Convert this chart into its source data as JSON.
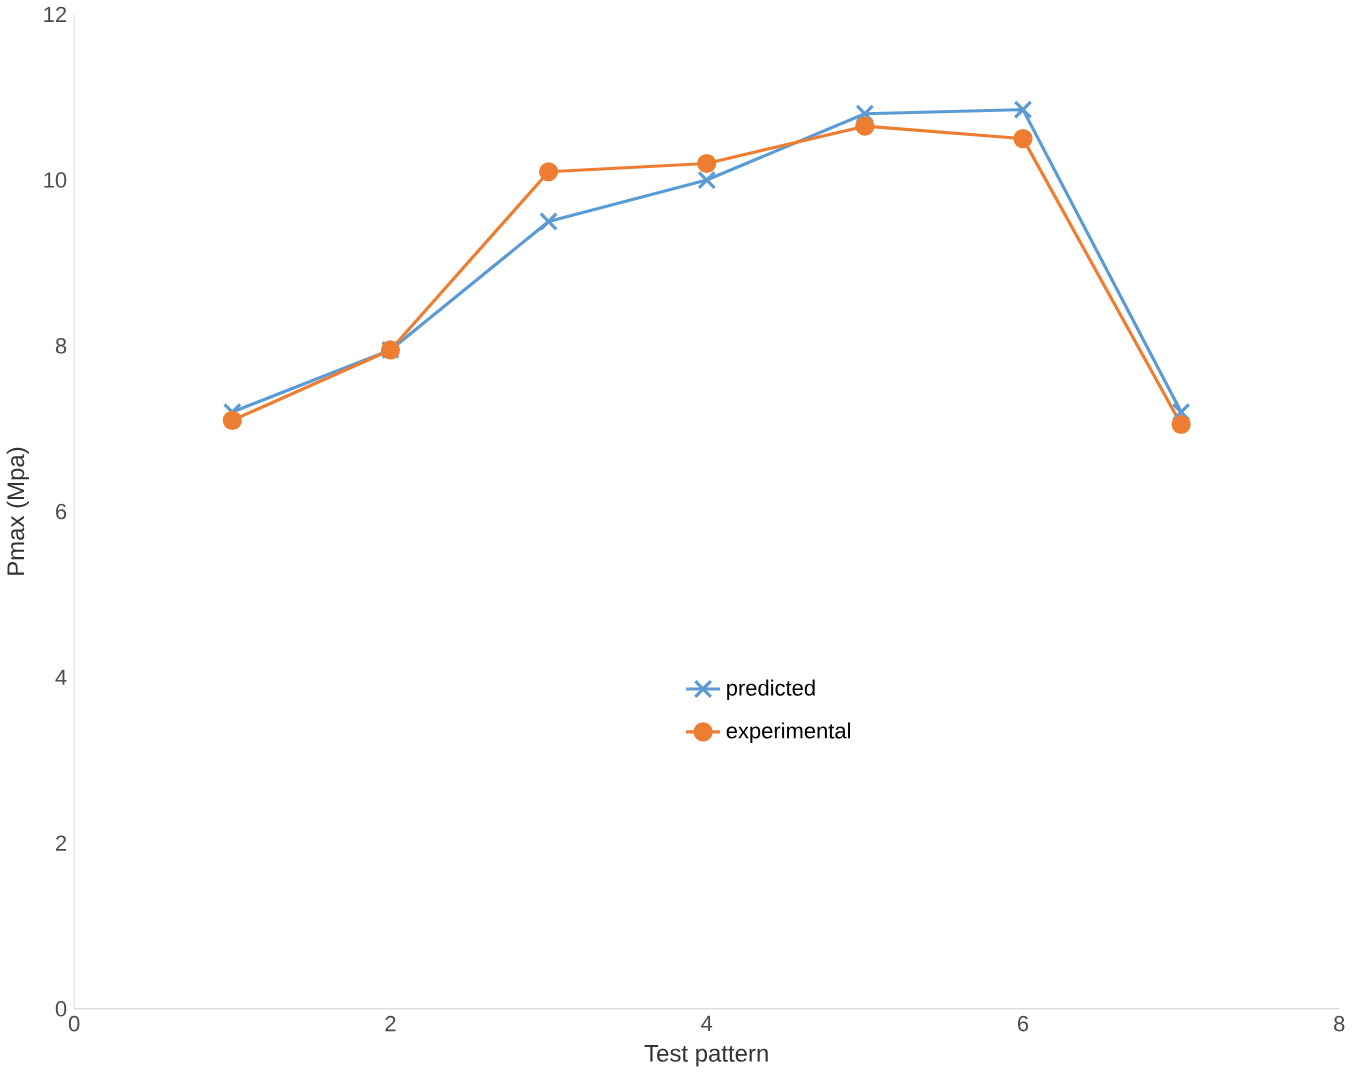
{
  "chart_data": {
    "type": "line",
    "xlabel": "Test pattern",
    "ylabel": "Pmax (Mpa)",
    "x": [
      1,
      2,
      3,
      4,
      5,
      6,
      7
    ],
    "series": [
      {
        "name": "predicted",
        "color": "#5b9bd5",
        "marker": "cross",
        "values": [
          7.2,
          7.95,
          9.5,
          10.0,
          10.8,
          10.85,
          7.2
        ]
      },
      {
        "name": "experimental",
        "color": "#ed7d31",
        "marker": "circle",
        "values": [
          7.1,
          7.95,
          10.1,
          10.2,
          10.65,
          10.5,
          7.05
        ]
      }
    ],
    "xlim": [
      0,
      8
    ],
    "xticks": [
      0,
      2,
      4,
      6,
      8
    ],
    "ylim": [
      0,
      12
    ],
    "yticks": [
      0,
      2,
      4,
      6,
      8,
      10,
      12
    ],
    "grid": false,
    "legend": "center",
    "line_style": "solid"
  }
}
